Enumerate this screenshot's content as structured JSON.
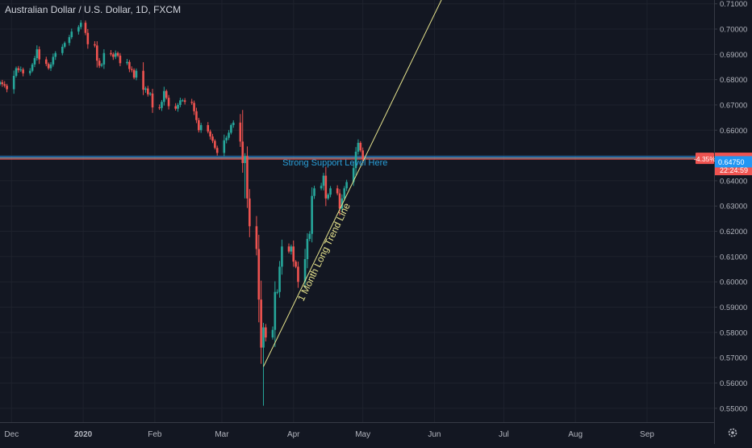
{
  "header": {
    "title": "Australian Dollar / U.S. Dollar, 1D, FXCM"
  },
  "colors": {
    "background": "#131722",
    "grid": "#1e222d",
    "up": "#26a69a",
    "down": "#ef5350",
    "axis_text": "#b2b5be",
    "trend_line": "#e6e38d",
    "support_blue": "#2196f3",
    "support_text": "#2a9fd8",
    "price_label_red": "#ef5350",
    "price_label_blue": "#2196f3"
  },
  "chart_data": {
    "type": "candlestick",
    "title": "Australian Dollar / U.S. Dollar, 1D, FXCM",
    "x_axis": {
      "tick_labels": [
        "Dec",
        "2020",
        "Feb",
        "Mar",
        "Apr",
        "May",
        "Jun",
        "Jul",
        "Aug",
        "Sep"
      ],
      "range": [
        "2019-11-26",
        "2020-09-30"
      ]
    },
    "y_axis": {
      "range": [
        0.5445,
        0.7115
      ],
      "tick_labels": [
        "0.71000",
        "0.70000",
        "0.69000",
        "0.68000",
        "0.67000",
        "0.66000",
        "0.65000",
        "0.64000",
        "0.63000",
        "0.62000",
        "0.61000",
        "0.60000",
        "0.59000",
        "0.58000",
        "0.57000",
        "0.56000",
        "0.55000"
      ],
      "ticks": [
        0.71,
        0.7,
        0.69,
        0.68,
        0.67,
        0.66,
        0.65,
        0.64,
        0.63,
        0.62,
        0.61,
        0.6,
        0.59,
        0.58,
        0.57,
        0.56,
        0.55
      ]
    },
    "grid": true,
    "candles": [
      {
        "date": "2019-11-26",
        "close": 0.679
      },
      {
        "date": "2019-11-27",
        "close": 0.6782
      },
      {
        "date": "2019-11-28",
        "close": 0.6776
      },
      {
        "date": "2019-11-29",
        "close": 0.6762
      },
      {
        "date": "2019-12-02",
        "close": 0.6815
      },
      {
        "date": "2019-12-03",
        "close": 0.6845
      },
      {
        "date": "2019-12-04",
        "close": 0.6838
      },
      {
        "date": "2019-12-05",
        "close": 0.684
      },
      {
        "date": "2019-12-06",
        "close": 0.6825
      },
      {
        "date": "2019-12-09",
        "close": 0.6835
      },
      {
        "date": "2019-12-10",
        "close": 0.686
      },
      {
        "date": "2019-12-11",
        "close": 0.6885
      },
      {
        "date": "2019-12-12",
        "close": 0.692
      },
      {
        "date": "2019-12-13",
        "close": 0.688
      },
      {
        "date": "2019-12-16",
        "close": 0.6862
      },
      {
        "date": "2019-12-17",
        "close": 0.6845
      },
      {
        "date": "2019-12-18",
        "close": 0.686
      },
      {
        "date": "2019-12-19",
        "close": 0.689
      },
      {
        "date": "2019-12-20",
        "close": 0.6905
      },
      {
        "date": "2019-12-23",
        "close": 0.693
      },
      {
        "date": "2019-12-24",
        "close": 0.6945
      },
      {
        "date": "2019-12-26",
        "close": 0.6968
      },
      {
        "date": "2019-12-27",
        "close": 0.699
      },
      {
        "date": "2019-12-30",
        "close": 0.7008
      },
      {
        "date": "2019-12-31",
        "close": 0.7025
      },
      {
        "date": "2020-01-02",
        "close": 0.6985
      },
      {
        "date": "2020-01-03",
        "close": 0.694
      },
      {
        "date": "2020-01-06",
        "close": 0.6935
      },
      {
        "date": "2020-01-07",
        "close": 0.6875
      },
      {
        "date": "2020-01-08",
        "close": 0.6855
      },
      {
        "date": "2020-01-09",
        "close": 0.686
      },
      {
        "date": "2020-01-10",
        "close": 0.6905
      },
      {
        "date": "2020-01-13",
        "close": 0.69
      },
      {
        "date": "2020-01-14",
        "close": 0.689
      },
      {
        "date": "2020-01-15",
        "close": 0.6905
      },
      {
        "date": "2020-01-16",
        "close": 0.6895
      },
      {
        "date": "2020-01-17",
        "close": 0.6865
      },
      {
        "date": "2020-01-20",
        "close": 0.687
      },
      {
        "date": "2020-01-21",
        "close": 0.6842
      },
      {
        "date": "2020-01-22",
        "close": 0.6838
      },
      {
        "date": "2020-01-23",
        "close": 0.6808
      },
      {
        "date": "2020-01-24",
        "close": 0.6835
      },
      {
        "date": "2020-01-27",
        "close": 0.676
      },
      {
        "date": "2020-01-28",
        "close": 0.6765
      },
      {
        "date": "2020-01-29",
        "close": 0.6742
      },
      {
        "date": "2020-01-30",
        "close": 0.6745
      },
      {
        "date": "2020-01-31",
        "close": 0.669
      },
      {
        "date": "2020-02-03",
        "close": 0.6688
      },
      {
        "date": "2020-02-04",
        "close": 0.6712
      },
      {
        "date": "2020-02-05",
        "close": 0.6755
      },
      {
        "date": "2020-02-06",
        "close": 0.6728
      },
      {
        "date": "2020-02-07",
        "close": 0.6695
      },
      {
        "date": "2020-02-10",
        "close": 0.6685
      },
      {
        "date": "2020-02-11",
        "close": 0.67
      },
      {
        "date": "2020-02-12",
        "close": 0.6718
      },
      {
        "date": "2020-02-13",
        "close": 0.6718
      },
      {
        "date": "2020-02-14",
        "close": 0.6712
      },
      {
        "date": "2020-02-17",
        "close": 0.6708
      },
      {
        "date": "2020-02-18",
        "close": 0.6675
      },
      {
        "date": "2020-02-19",
        "close": 0.664
      },
      {
        "date": "2020-02-20",
        "close": 0.66
      },
      {
        "date": "2020-02-21",
        "close": 0.662
      },
      {
        "date": "2020-02-24",
        "close": 0.6595
      },
      {
        "date": "2020-02-25",
        "close": 0.6575
      },
      {
        "date": "2020-02-26",
        "close": 0.6558
      },
      {
        "date": "2020-02-27",
        "close": 0.653
      },
      {
        "date": "2020-02-28",
        "close": 0.651
      },
      {
        "date": "2020-03-02",
        "close": 0.656
      },
      {
        "date": "2020-03-03",
        "close": 0.657
      },
      {
        "date": "2020-03-04",
        "close": 0.659
      },
      {
        "date": "2020-03-05",
        "close": 0.662
      },
      {
        "date": "2020-03-06",
        "close": 0.663
      },
      {
        "date": "2020-03-09",
        "close": 0.6555
      },
      {
        "date": "2020-03-10",
        "close": 0.647
      },
      {
        "date": "2020-03-11",
        "close": 0.6498
      },
      {
        "date": "2020-03-12",
        "close": 0.633
      },
      {
        "date": "2020-03-13",
        "close": 0.622
      },
      {
        "date": "2020-03-16",
        "close": 0.613
      },
      {
        "date": "2020-03-17",
        "close": 0.593
      },
      {
        "date": "2020-03-18",
        "close": 0.574
      },
      {
        "date": "2020-03-19",
        "close": 0.582
      },
      {
        "date": "2020-03-20",
        "close": 0.578
      },
      {
        "date": "2020-03-23",
        "close": 0.581
      },
      {
        "date": "2020-03-24",
        "close": 0.596
      },
      {
        "date": "2020-03-25",
        "close": 0.596
      },
      {
        "date": "2020-03-26",
        "close": 0.606
      },
      {
        "date": "2020-03-27",
        "close": 0.614
      },
      {
        "date": "2020-03-30",
        "close": 0.612
      },
      {
        "date": "2020-03-31",
        "close": 0.614
      },
      {
        "date": "2020-04-01",
        "close": 0.608
      },
      {
        "date": "2020-04-02",
        "close": 0.606
      },
      {
        "date": "2020-04-03",
        "close": 0.6
      },
      {
        "date": "2020-04-06",
        "close": 0.609
      },
      {
        "date": "2020-04-07",
        "close": 0.617
      },
      {
        "date": "2020-04-08",
        "close": 0.619
      },
      {
        "date": "2020-04-09",
        "close": 0.634
      },
      {
        "date": "2020-04-10",
        "close": 0.637
      },
      {
        "date": "2020-04-13",
        "close": 0.638
      },
      {
        "date": "2020-04-14",
        "close": 0.642
      },
      {
        "date": "2020-04-15",
        "close": 0.633
      },
      {
        "date": "2020-04-16",
        "close": 0.6345
      },
      {
        "date": "2020-04-17",
        "close": 0.637
      },
      {
        "date": "2020-04-20",
        "close": 0.635
      },
      {
        "date": "2020-04-21",
        "close": 0.629
      },
      {
        "date": "2020-04-22",
        "close": 0.633
      },
      {
        "date": "2020-04-23",
        "close": 0.637
      },
      {
        "date": "2020-04-24",
        "close": 0.6395
      },
      {
        "date": "2020-04-27",
        "close": 0.645
      },
      {
        "date": "2020-04-28",
        "close": 0.6515
      },
      {
        "date": "2020-04-29",
        "close": 0.655
      },
      {
        "date": "2020-04-30",
        "close": 0.652
      },
      {
        "date": "2020-05-01",
        "close": 0.6486
      }
    ],
    "annotations": [
      {
        "type": "trend_line",
        "label": "1 Month Long Trend Line",
        "from": {
          "date": "2020-03-19",
          "value": 0.5665
        },
        "to": {
          "date": "2020-06-04",
          "value": 0.7115
        }
      },
      {
        "type": "horizontal_line",
        "value": 0.6496,
        "color": "#2196f3"
      },
      {
        "type": "horizontal_line",
        "value": 0.649,
        "color": "#b2b5be"
      },
      {
        "type": "horizontal_line",
        "value": 0.64857,
        "color": "#ef5350"
      },
      {
        "type": "text",
        "label": "Strong Support Level Here",
        "date": "2020-04-19",
        "value": 0.646
      }
    ],
    "price_labels": {
      "change": "-4.35%",
      "current": "0.64857",
      "countdown": "22:24:59",
      "support": "0.64750"
    }
  }
}
